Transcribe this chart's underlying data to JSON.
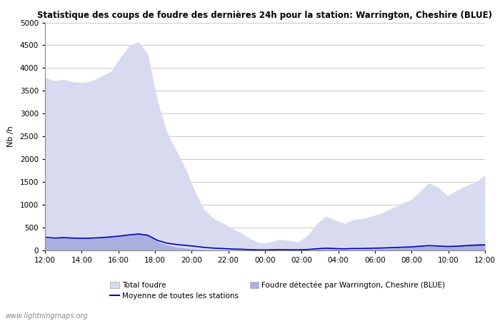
{
  "title": "Statistique des coups de foudre des dernières 24h pour la station: Warrington, Cheshire (BLUE)",
  "ylabel": "Nb /h",
  "watermark": "www.lightningmaps.org",
  "ylim": [
    0,
    5000
  ],
  "yticks": [
    0,
    500,
    1000,
    1500,
    2000,
    2500,
    3000,
    3500,
    4000,
    4500,
    5000
  ],
  "background_color": "#ffffff",
  "plot_bg_color": "#ffffff",
  "grid_color": "#c8c8c8",
  "fill_total_color": "#d8daf0",
  "fill_station_color": "#a8b0e0",
  "line_color": "#0000bb",
  "legend_total": "Total foudre",
  "legend_station": "Foudre détectée par Warrington, Cheshire (BLUE)",
  "legend_mean": "Moyenne de toutes les stations",
  "x_labels": [
    "12:00",
    "14:00",
    "16:00",
    "18:00",
    "20:00",
    "22:00",
    "00:00",
    "02:00",
    "04:00",
    "06:00",
    "08:00",
    "10:00",
    "12:00"
  ],
  "total_foudre": [
    3800,
    3720,
    3750,
    3700,
    3680,
    3720,
    3820,
    3920,
    4220,
    4500,
    4580,
    4300,
    3300,
    2600,
    2200,
    1800,
    1300,
    900,
    700,
    600,
    480,
    380,
    250,
    160,
    180,
    240,
    220,
    180,
    320,
    580,
    750,
    660,
    590,
    680,
    700,
    760,
    820,
    920,
    1020,
    1100,
    1280,
    1480,
    1380,
    1200,
    1320,
    1420,
    1500,
    1650
  ],
  "station_foudre": [
    270,
    255,
    275,
    270,
    265,
    260,
    280,
    290,
    310,
    340,
    370,
    330,
    190,
    120,
    70,
    50,
    30,
    15,
    12,
    8,
    6,
    5,
    3,
    2,
    3,
    5,
    6,
    5,
    10,
    20,
    35,
    28,
    20,
    28,
    28,
    32,
    38,
    48,
    58,
    68,
    82,
    95,
    85,
    72,
    90,
    120,
    140,
    150
  ],
  "mean_line": [
    290,
    270,
    280,
    270,
    265,
    270,
    280,
    295,
    315,
    340,
    360,
    330,
    220,
    160,
    130,
    110,
    90,
    65,
    50,
    40,
    30,
    24,
    15,
    10,
    12,
    16,
    14,
    11,
    18,
    35,
    48,
    40,
    35,
    42,
    42,
    48,
    52,
    60,
    68,
    75,
    90,
    105,
    95,
    85,
    92,
    105,
    115,
    120
  ]
}
